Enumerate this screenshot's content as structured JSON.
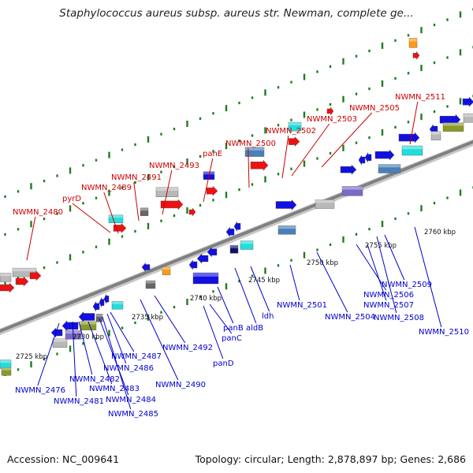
{
  "title": "Staphylococcus aureus subsp. aureus str. Newman, complete ge...",
  "footer": {
    "accession": "Accession: NC_009641",
    "summary": "Topology: circular; Length: 2,878,897 bp; Genes: 2,686"
  },
  "colors": {
    "upper_labels": "#cc0000",
    "lower_labels": "#0000cc",
    "backbone": "#808080",
    "tick_green": "#1e7d1e"
  },
  "scale_ticks": [
    "2725 kbp",
    "2730 kbp",
    "2735 kbp",
    "2740 kbp",
    "2745 kbp",
    "2750 kbp",
    "2755 kbp",
    "2760 kbp"
  ],
  "upper_labels": [
    "NWMN_2480",
    "pyrD",
    "NWMN_2489",
    "NWMN_2491",
    "NWMN_2493",
    "panE",
    "NWMN_2500",
    "NWMN_2502",
    "NWMN_2503",
    "NWMN_2505",
    "NWMN_2511"
  ],
  "lower_labels": [
    "NWMN_2476",
    "NWMN_2481",
    "NWMN_2482",
    "NWMN_2483",
    "NWMN_2484",
    "NWMN_2485",
    "NWMN_2486",
    "NWMN_2487",
    "NWMN_2490",
    "NWMN_2492",
    "panD",
    "panC",
    "panB",
    "aldB",
    "ldh",
    "NWMN_2501",
    "NWMN_2504",
    "NWMN_2506",
    "NWMN_2507",
    "NWMN_2508",
    "NWMN_2509",
    "NWMN_2510"
  ]
}
